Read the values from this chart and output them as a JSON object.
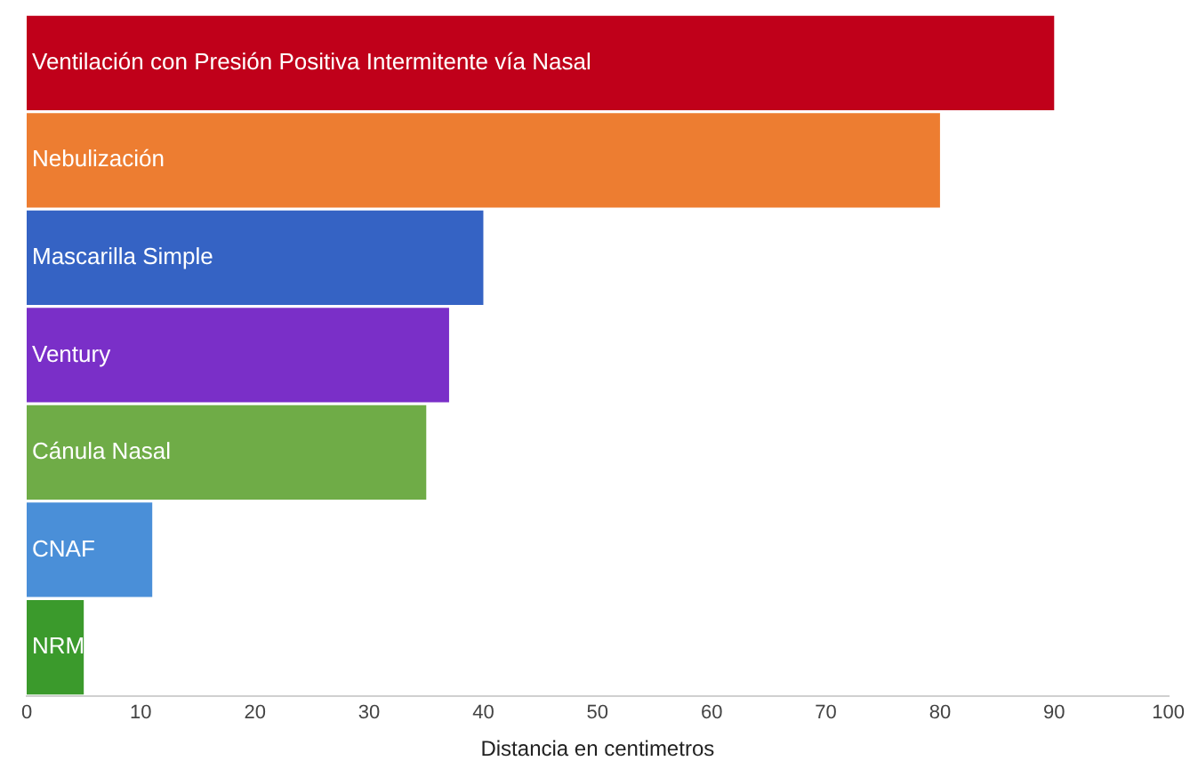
{
  "chart_data": {
    "type": "bar",
    "orientation": "horizontal",
    "xlabel": "Distancia en centimetros",
    "categories": [
      "Ventilación con Presión Positiva Intermitente vía Nasal",
      "Nebulización",
      "Mascarilla Simple",
      "Ventury",
      "Cánula Nasal",
      "CNAF",
      "NRM"
    ],
    "values": [
      90,
      80,
      40,
      37,
      35,
      11,
      5
    ],
    "colors": [
      "#c0001a",
      "#ed7d31",
      "#3563c4",
      "#7a2fc8",
      "#6fac47",
      "#4a8fd8",
      "#3b9a2c"
    ],
    "xlim": [
      0,
      100
    ],
    "xticks": [
      0,
      10,
      20,
      30,
      40,
      50,
      60,
      70,
      80,
      90,
      100
    ],
    "grid": false,
    "legend": false
  }
}
